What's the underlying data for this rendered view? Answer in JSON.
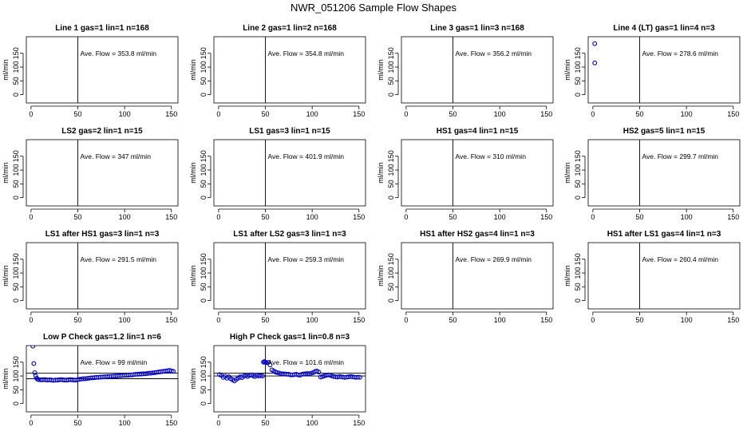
{
  "figure": {
    "title": "NWR_051206  Sample Flow Shapes"
  },
  "chart_data": [
    {
      "type": "scatter",
      "title": "Line 1 gas=1 lin=1 n=168",
      "ylabel": "ml/min",
      "annotation": "Ave. Flow =  353.8  ml/min",
      "xlim": [
        -5,
        157
      ],
      "ylim": [
        -30,
        210
      ],
      "xticks": [
        0,
        50,
        100,
        150
      ],
      "yticks": [
        0,
        50,
        100,
        150
      ],
      "vline": 50,
      "hlines": [],
      "points": []
    },
    {
      "type": "scatter",
      "title": "Line 2 gas=1 lin=2 n=168",
      "ylabel": "ml/min",
      "annotation": "Ave. Flow =  354.8  ml/min",
      "xlim": [
        -5,
        157
      ],
      "ylim": [
        -30,
        210
      ],
      "xticks": [
        0,
        50,
        100,
        150
      ],
      "yticks": [
        0,
        50,
        100,
        150
      ],
      "vline": 50,
      "hlines": [],
      "points": []
    },
    {
      "type": "scatter",
      "title": "Line 3 gas=1 lin=3 n=168",
      "ylabel": "ml/min",
      "annotation": "Ave. Flow =  356.2  ml/min",
      "xlim": [
        -5,
        157
      ],
      "ylim": [
        -30,
        210
      ],
      "xticks": [
        0,
        50,
        100,
        150
      ],
      "yticks": [
        0,
        50,
        100,
        150
      ],
      "vline": 50,
      "hlines": [],
      "points": []
    },
    {
      "type": "scatter",
      "title": "Line 4 (LT) gas=1 lin=4 n=3",
      "ylabel": "ml/min",
      "annotation": "Ave. Flow =  278.6  ml/min",
      "xlim": [
        -5,
        157
      ],
      "ylim": [
        -30,
        210
      ],
      "xticks": [
        0,
        50,
        100,
        150
      ],
      "yticks": [
        0,
        50,
        100,
        150
      ],
      "vline": 50,
      "hlines": [],
      "points": [
        [
          2,
          185
        ],
        [
          2,
          115
        ]
      ]
    },
    {
      "type": "scatter",
      "title": "LS2 gas=2 lin=1 n=15",
      "ylabel": "ml/min",
      "annotation": "Ave. Flow =  347  ml/min",
      "xlim": [
        -5,
        157
      ],
      "ylim": [
        -30,
        210
      ],
      "xticks": [
        0,
        50,
        100,
        150
      ],
      "yticks": [
        0,
        50,
        100,
        150
      ],
      "vline": 50,
      "hlines": [],
      "points": []
    },
    {
      "type": "scatter",
      "title": "LS1 gas=3 lin=1 n=15",
      "ylabel": "ml/min",
      "annotation": "Ave. Flow =  401.9  ml/min",
      "xlim": [
        -5,
        157
      ],
      "ylim": [
        -30,
        210
      ],
      "xticks": [
        0,
        50,
        100,
        150
      ],
      "yticks": [
        0,
        50,
        100,
        150
      ],
      "vline": 50,
      "hlines": [],
      "points": []
    },
    {
      "type": "scatter",
      "title": "HS1 gas=4 lin=1 n=15",
      "ylabel": "ml/min",
      "annotation": "Ave. Flow =  310  ml/min",
      "xlim": [
        -5,
        157
      ],
      "ylim": [
        -30,
        210
      ],
      "xticks": [
        0,
        50,
        100,
        150
      ],
      "yticks": [
        0,
        50,
        100,
        150
      ],
      "vline": 50,
      "hlines": [],
      "points": []
    },
    {
      "type": "scatter",
      "title": "HS2 gas=5 lin=1 n=15",
      "ylabel": "ml/min",
      "annotation": "Ave. Flow =  299.7  ml/min",
      "xlim": [
        -5,
        157
      ],
      "ylim": [
        -30,
        210
      ],
      "xticks": [
        0,
        50,
        100,
        150
      ],
      "yticks": [
        0,
        50,
        100,
        150
      ],
      "vline": 50,
      "hlines": [],
      "points": []
    },
    {
      "type": "scatter",
      "title": "LS1 after HS1 gas=3 lin=1 n=3",
      "ylabel": "ml/min",
      "annotation": "Ave. Flow =  291.5  ml/min",
      "xlim": [
        -5,
        157
      ],
      "ylim": [
        -30,
        210
      ],
      "xticks": [
        0,
        50,
        100,
        150
      ],
      "yticks": [
        0,
        50,
        100,
        150
      ],
      "vline": 50,
      "hlines": [],
      "points": []
    },
    {
      "type": "scatter",
      "title": "LS1 after LS2 gas=3 lin=1 n=3",
      "ylabel": "ml/min",
      "annotation": "Ave. Flow =  259.3  ml/min",
      "xlim": [
        -5,
        157
      ],
      "ylim": [
        -30,
        210
      ],
      "xticks": [
        0,
        50,
        100,
        150
      ],
      "yticks": [
        0,
        50,
        100,
        150
      ],
      "vline": 50,
      "hlines": [],
      "points": []
    },
    {
      "type": "scatter",
      "title": "HS1 after HS2 gas=4 lin=1 n=3",
      "ylabel": "ml/min",
      "annotation": "Ave. Flow =  269.9  ml/min",
      "xlim": [
        -5,
        157
      ],
      "ylim": [
        -30,
        210
      ],
      "xticks": [
        0,
        50,
        100,
        150
      ],
      "yticks": [
        0,
        50,
        100,
        150
      ],
      "vline": 50,
      "hlines": [],
      "points": []
    },
    {
      "type": "scatter",
      "title": "HS1 after LS1 gas=4 lin=1 n=3",
      "ylabel": "ml/min",
      "annotation": "Ave. Flow =  260.4  ml/min",
      "xlim": [
        -5,
        157
      ],
      "ylim": [
        -30,
        210
      ],
      "xticks": [
        0,
        50,
        100,
        150
      ],
      "yticks": [
        0,
        50,
        100,
        150
      ],
      "vline": 50,
      "hlines": [],
      "points": []
    },
    {
      "type": "scatter",
      "title": "Low P Check gas=1.2 lin=1 n=6",
      "ylabel": "ml/min",
      "annotation": "Ave. Flow =  99  ml/min",
      "xlim": [
        -5,
        157
      ],
      "ylim": [
        -30,
        210
      ],
      "xticks": [
        0,
        50,
        100,
        150
      ],
      "yticks": [
        0,
        50,
        100,
        150
      ],
      "vline": 50,
      "hlines": [
        110,
        90
      ],
      "points": [
        [
          2,
          208
        ],
        [
          3,
          145
        ],
        [
          4,
          112
        ],
        [
          5,
          100
        ],
        [
          6,
          92
        ],
        [
          7,
          88
        ],
        [
          8,
          87
        ],
        [
          10,
          86
        ],
        [
          12,
          86
        ],
        [
          14,
          87
        ],
        [
          16,
          86
        ],
        [
          18,
          85
        ],
        [
          20,
          86
        ],
        [
          22,
          85
        ],
        [
          24,
          84
        ],
        [
          26,
          85
        ],
        [
          28,
          85
        ],
        [
          30,
          86
        ],
        [
          32,
          87
        ],
        [
          34,
          86
        ],
        [
          36,
          85
        ],
        [
          38,
          85
        ],
        [
          40,
          86
        ],
        [
          42,
          87
        ],
        [
          44,
          86
        ],
        [
          46,
          85
        ],
        [
          48,
          85
        ],
        [
          50,
          87
        ],
        [
          52,
          88
        ],
        [
          54,
          89
        ],
        [
          56,
          90
        ],
        [
          58,
          90
        ],
        [
          60,
          91
        ],
        [
          62,
          92
        ],
        [
          64,
          93
        ],
        [
          66,
          93
        ],
        [
          68,
          94
        ],
        [
          70,
          95
        ],
        [
          72,
          95
        ],
        [
          74,
          96
        ],
        [
          76,
          96
        ],
        [
          78,
          97
        ],
        [
          80,
          97
        ],
        [
          82,
          98
        ],
        [
          84,
          98
        ],
        [
          86,
          99
        ],
        [
          88,
          99
        ],
        [
          90,
          100
        ],
        [
          92,
          100
        ],
        [
          94,
          101
        ],
        [
          96,
          101
        ],
        [
          98,
          102
        ],
        [
          100,
          102
        ],
        [
          102,
          103
        ],
        [
          104,
          103
        ],
        [
          106,
          104
        ],
        [
          108,
          104
        ],
        [
          110,
          105
        ],
        [
          112,
          106
        ],
        [
          114,
          106
        ],
        [
          116,
          107
        ],
        [
          118,
          107
        ],
        [
          120,
          108
        ],
        [
          122,
          108
        ],
        [
          124,
          109
        ],
        [
          126,
          110
        ],
        [
          128,
          110
        ],
        [
          130,
          111
        ],
        [
          132,
          112
        ],
        [
          134,
          113
        ],
        [
          136,
          114
        ],
        [
          138,
          115
        ],
        [
          140,
          116
        ],
        [
          142,
          117
        ],
        [
          144,
          118
        ],
        [
          146,
          119
        ],
        [
          148,
          120
        ],
        [
          150,
          118
        ],
        [
          152,
          117
        ]
      ]
    },
    {
      "type": "scatter",
      "title": "High P Check gas=1 lin=0.8 n=3",
      "ylabel": "ml/min",
      "annotation": "Ave. Flow =  101.6  ml/min",
      "xlim": [
        -5,
        157
      ],
      "ylim": [
        -30,
        210
      ],
      "xticks": [
        0,
        50,
        100,
        150
      ],
      "yticks": [
        0,
        50,
        100,
        150
      ],
      "vline": 50,
      "hlines": [
        110,
        100
      ],
      "points": [
        [
          1,
          105
        ],
        [
          3,
          102
        ],
        [
          5,
          95
        ],
        [
          7,
          99
        ],
        [
          9,
          92
        ],
        [
          11,
          97
        ],
        [
          13,
          90
        ],
        [
          15,
          86
        ],
        [
          17,
          82
        ],
        [
          19,
          88
        ],
        [
          21,
          92
        ],
        [
          23,
          97
        ],
        [
          25,
          94
        ],
        [
          27,
          100
        ],
        [
          29,
          101
        ],
        [
          31,
          98
        ],
        [
          33,
          102
        ],
        [
          35,
          104
        ],
        [
          37,
          100
        ],
        [
          39,
          98
        ],
        [
          41,
          102
        ],
        [
          43,
          100
        ],
        [
          45,
          101
        ],
        [
          47,
          100
        ],
        [
          48,
          150
        ],
        [
          49,
          152
        ],
        [
          50,
          150
        ],
        [
          51,
          148
        ],
        [
          53,
          149
        ],
        [
          55,
          140
        ],
        [
          57,
          122
        ],
        [
          59,
          118
        ],
        [
          61,
          114
        ],
        [
          63,
          112
        ],
        [
          65,
          110
        ],
        [
          67,
          108
        ],
        [
          69,
          108
        ],
        [
          71,
          107
        ],
        [
          73,
          106
        ],
        [
          75,
          106
        ],
        [
          77,
          104
        ],
        [
          79,
          104
        ],
        [
          81,
          105
        ],
        [
          83,
          106
        ],
        [
          85,
          104
        ],
        [
          87,
          103
        ],
        [
          89,
          106
        ],
        [
          91,
          107
        ],
        [
          93,
          108
        ],
        [
          95,
          109
        ],
        [
          97,
          108
        ],
        [
          99,
          110
        ],
        [
          101,
          112
        ],
        [
          103,
          116
        ],
        [
          105,
          118
        ],
        [
          107,
          114
        ],
        [
          109,
          96
        ],
        [
          111,
          98
        ],
        [
          113,
          100
        ],
        [
          115,
          102
        ],
        [
          117,
          104
        ],
        [
          119,
          103
        ],
        [
          121,
          100
        ],
        [
          123,
          98
        ],
        [
          125,
          97
        ],
        [
          127,
          96
        ],
        [
          129,
          98
        ],
        [
          131,
          97
        ],
        [
          133,
          96
        ],
        [
          135,
          95
        ],
        [
          137,
          96
        ],
        [
          139,
          97
        ],
        [
          141,
          98
        ],
        [
          143,
          97
        ],
        [
          145,
          96
        ],
        [
          147,
          95
        ],
        [
          149,
          96
        ],
        [
          151,
          95
        ]
      ]
    }
  ]
}
